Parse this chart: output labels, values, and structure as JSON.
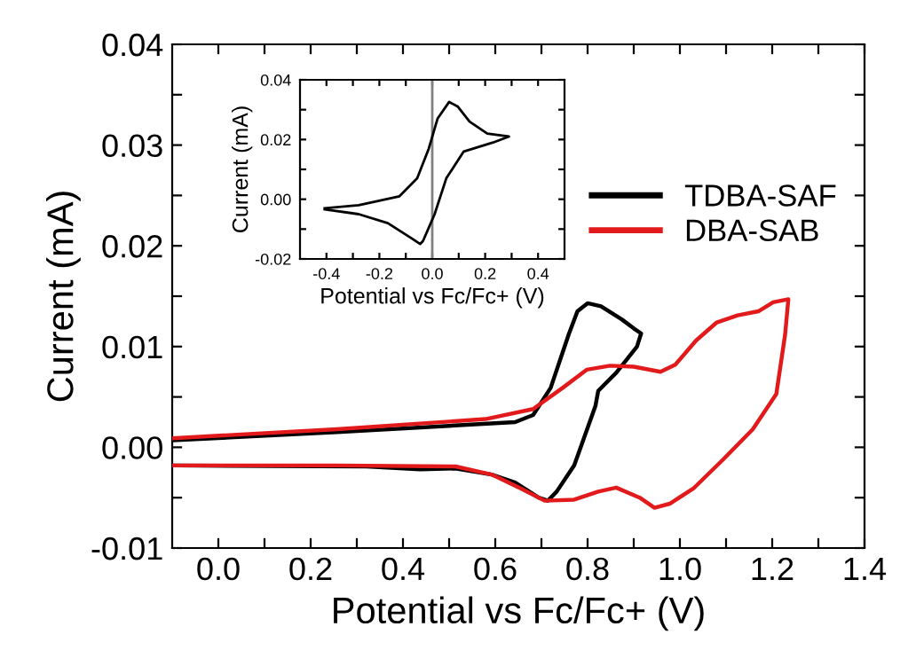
{
  "chart_data": [
    {
      "type": "line",
      "xlabel": "Potential vs Fc/Fc+ (V)",
      "ylabel": "Current (mA)",
      "xlim": [
        -0.1,
        1.4
      ],
      "ylim": [
        -0.01,
        0.04
      ],
      "xticks": [
        {
          "value": 0.0,
          "label": "0.0"
        },
        {
          "value": 0.1,
          "label": null
        },
        {
          "value": 0.2,
          "label": "0.2"
        },
        {
          "value": 0.3,
          "label": null
        },
        {
          "value": 0.4,
          "label": "0.4"
        },
        {
          "value": 0.5,
          "label": null
        },
        {
          "value": 0.6,
          "label": "0.6"
        },
        {
          "value": 0.7,
          "label": null
        },
        {
          "value": 0.8,
          "label": "0.8"
        },
        {
          "value": 0.9,
          "label": null
        },
        {
          "value": 1.0,
          "label": "1.0"
        },
        {
          "value": 1.1,
          "label": null
        },
        {
          "value": 1.2,
          "label": "1.2"
        },
        {
          "value": 1.3,
          "label": null
        },
        {
          "value": 1.4,
          "label": "1.4"
        }
      ],
      "yticks": [
        {
          "value": -0.01,
          "label": "-0.01"
        },
        {
          "value": -0.005,
          "label": null
        },
        {
          "value": 0.0,
          "label": "0.00"
        },
        {
          "value": 0.005,
          "label": null
        },
        {
          "value": 0.01,
          "label": "0.01"
        },
        {
          "value": 0.015,
          "label": null
        },
        {
          "value": 0.02,
          "label": "0.02"
        },
        {
          "value": 0.025,
          "label": null
        },
        {
          "value": 0.03,
          "label": "0.03"
        },
        {
          "value": 0.035,
          "label": null
        },
        {
          "value": 0.04,
          "label": "0.04"
        }
      ],
      "grid": false,
      "legend": "right",
      "marker": "none",
      "line_style": "solid",
      "series": [
        {
          "name": "TDBA-SAF",
          "color": "#000000",
          "x": [
            -0.1,
            0.257,
            0.643,
            0.682,
            0.72,
            0.759,
            0.778,
            0.8,
            0.829,
            0.874,
            0.9,
            0.916,
            0.907,
            0.862,
            0.823,
            0.817,
            0.771,
            0.733,
            0.714,
            0.694,
            0.643,
            0.592,
            0.514,
            0.437,
            0.321,
            -0.1
          ],
          "values": [
            0.0007,
            0.0015,
            0.0025,
            0.0032,
            0.0059,
            0.0112,
            0.0135,
            0.0143,
            0.014,
            0.0127,
            0.0118,
            0.0113,
            0.01,
            0.0074,
            0.0056,
            0.0041,
            -0.0018,
            -0.0044,
            -0.0053,
            -0.005,
            -0.0035,
            -0.0027,
            -0.0021,
            -0.0022,
            -0.0019,
            -0.0018
          ]
        },
        {
          "name": "DBA-SAB",
          "color": "#e31a1c",
          "x": [
            -0.1,
            0.257,
            0.579,
            0.682,
            0.746,
            0.798,
            0.849,
            0.9,
            0.958,
            0.99,
            1.035,
            1.08,
            1.125,
            1.17,
            1.202,
            1.235,
            1.228,
            1.209,
            1.158,
            1.094,
            1.029,
            0.978,
            0.945,
            0.913,
            0.862,
            0.823,
            0.771,
            0.707,
            0.656,
            0.592,
            0.514,
            0.257,
            -0.1
          ],
          "values": [
            0.0009,
            0.0018,
            0.0028,
            0.0038,
            0.0059,
            0.0077,
            0.0081,
            0.008,
            0.0075,
            0.0082,
            0.0106,
            0.0124,
            0.0131,
            0.0135,
            0.0144,
            0.0147,
            0.0112,
            0.0053,
            0.0018,
            -0.0012,
            -0.0041,
            -0.0056,
            -0.006,
            -0.005,
            -0.004,
            -0.0044,
            -0.0052,
            -0.0053,
            -0.0041,
            -0.0027,
            -0.0019,
            -0.0018,
            -0.0018
          ]
        }
      ]
    },
    {
      "type": "line",
      "xlabel": "Potential vs Fc/Fc+ (V)",
      "ylabel": "Current (mA)",
      "xlim": [
        -0.5,
        0.5
      ],
      "ylim": [
        -0.02,
        0.04
      ],
      "xticks": [
        {
          "value": -0.4,
          "label": "-0.4"
        },
        {
          "value": -0.3,
          "label": null
        },
        {
          "value": -0.2,
          "label": "-0.2"
        },
        {
          "value": -0.1,
          "label": null
        },
        {
          "value": 0.0,
          "label": "0.0"
        },
        {
          "value": 0.1,
          "label": null
        },
        {
          "value": 0.2,
          "label": "0.2"
        },
        {
          "value": 0.3,
          "label": null
        },
        {
          "value": 0.4,
          "label": "0.4"
        }
      ],
      "yticks": [
        {
          "value": -0.02,
          "label": "-0.02"
        },
        {
          "value": -0.01,
          "label": null
        },
        {
          "value": 0.0,
          "label": "0.00"
        },
        {
          "value": 0.01,
          "label": null
        },
        {
          "value": 0.02,
          "label": "0.02"
        },
        {
          "value": 0.03,
          "label": null
        },
        {
          "value": 0.04,
          "label": "0.04"
        }
      ],
      "grid": false,
      "marker": "none",
      "line_style": "solid",
      "ref_lines": [
        {
          "axis": "x",
          "value": 0.0,
          "color": "#808080"
        }
      ],
      "series": [
        {
          "color": "#000000",
          "x": [
            -0.407,
            -0.278,
            -0.124,
            -0.057,
            -0.013,
            0.02,
            0.064,
            0.097,
            0.141,
            0.208,
            0.29,
            0.23,
            0.119,
            0.053,
            0.009,
            -0.035,
            -0.046,
            -0.08,
            -0.168,
            -0.278,
            -0.407
          ],
          "values": [
            -0.003,
            -0.002,
            0.001,
            0.007,
            0.017,
            0.027,
            0.0326,
            0.031,
            0.026,
            0.022,
            0.021,
            0.019,
            0.016,
            0.007,
            -0.005,
            -0.014,
            -0.015,
            -0.013,
            -0.008,
            -0.005,
            -0.0034
          ]
        }
      ]
    }
  ]
}
